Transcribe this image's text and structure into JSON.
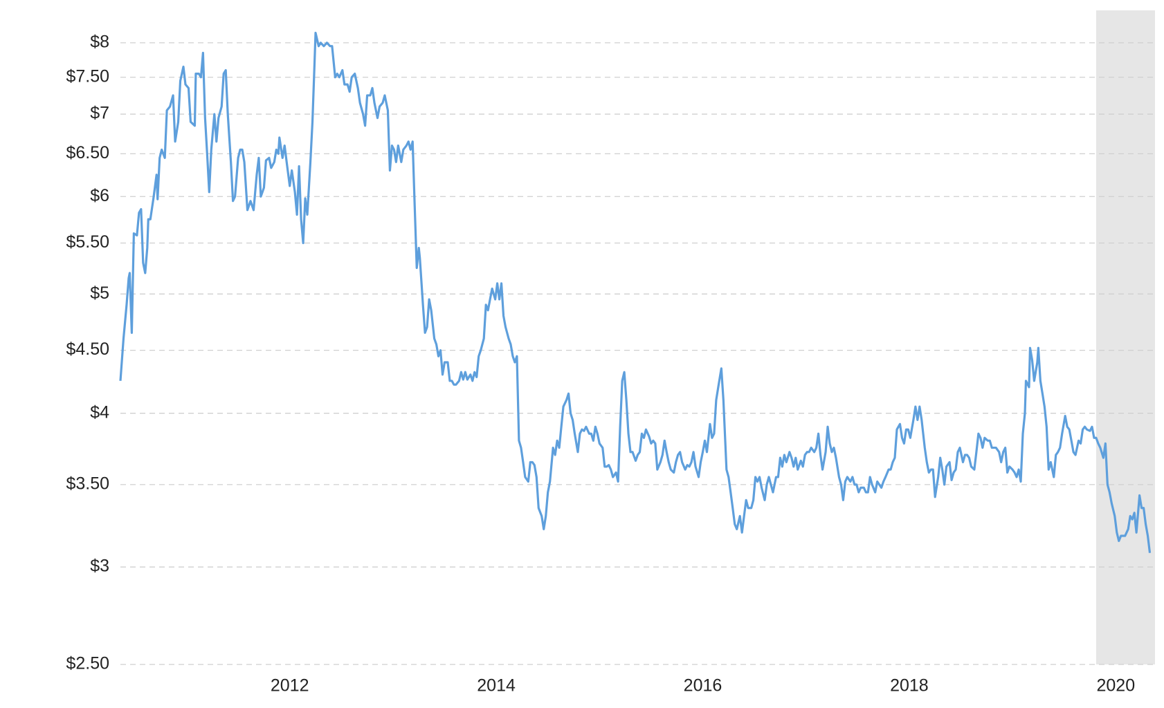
{
  "chart_data": {
    "type": "line",
    "log_y": true,
    "grid": true,
    "highlight_x": [
      2019.81,
      2020.38
    ],
    "highlight_color": "#e6e6e6",
    "xlim": [
      2010.36,
      2020.38
    ],
    "xticks": [
      2012,
      2014,
      2016,
      2018,
      2020
    ],
    "ylim": [
      2.5,
      8.5
    ],
    "yticks": [
      {
        "value": 2.5,
        "label": "$2.50"
      },
      {
        "value": 3,
        "label": "$3"
      },
      {
        "value": 3.5,
        "label": "$3.50"
      },
      {
        "value": 4,
        "label": "$4"
      },
      {
        "value": 4.5,
        "label": "$4.50"
      },
      {
        "value": 5,
        "label": "$5"
      },
      {
        "value": 5.5,
        "label": "$5.50"
      },
      {
        "value": 6,
        "label": "$6"
      },
      {
        "value": 6.5,
        "label": "$6.50"
      },
      {
        "value": 7,
        "label": "$7"
      },
      {
        "value": 7.5,
        "label": "$7.50"
      },
      {
        "value": 8,
        "label": "$8"
      }
    ],
    "x": [
      2010.36,
      2010.39,
      2010.42,
      2010.44,
      2010.45,
      2010.47,
      2010.49,
      2010.52,
      2010.54,
      2010.56,
      2010.58,
      2010.6,
      2010.62,
      2010.63,
      2010.65,
      2010.68,
      2010.71,
      2010.72,
      2010.74,
      2010.76,
      2010.79,
      2010.81,
      2010.84,
      2010.87,
      2010.89,
      2010.92,
      2010.94,
      2010.97,
      2010.99,
      2011.02,
      2011.04,
      2011.08,
      2011.09,
      2011.12,
      2011.14,
      2011.16,
      2011.18,
      2011.2,
      2011.22,
      2011.24,
      2011.27,
      2011.29,
      2011.31,
      2011.34,
      2011.36,
      2011.38,
      2011.4,
      2011.43,
      2011.45,
      2011.47,
      2011.5,
      2011.52,
      2011.54,
      2011.56,
      2011.59,
      2011.62,
      2011.65,
      2011.68,
      2011.7,
      2011.72,
      2011.75,
      2011.77,
      2011.8,
      2011.82,
      2011.85,
      2011.87,
      2011.89,
      2011.9,
      2011.93,
      2011.95,
      2011.97,
      2012.0,
      2012.02,
      2012.05,
      2012.07,
      2012.09,
      2012.11,
      2012.13,
      2012.15,
      2012.17,
      2012.2,
      2012.22,
      2012.24,
      2012.25,
      2012.28,
      2012.3,
      2012.33,
      2012.36,
      2012.39,
      2012.41,
      2012.44,
      2012.46,
      2012.48,
      2012.51,
      2012.53,
      2012.56,
      2012.58,
      2012.6,
      2012.63,
      2012.66,
      2012.68,
      2012.71,
      2012.73,
      2012.75,
      2012.78,
      2012.8,
      2012.82,
      2012.85,
      2012.87,
      2012.9,
      2012.92,
      2012.95,
      2012.97,
      2012.99,
      2013.01,
      2013.03,
      2013.05,
      2013.08,
      2013.1,
      2013.13,
      2013.15,
      2013.17,
      2013.19,
      2013.21,
      2013.23,
      2013.25,
      2013.26,
      2013.29,
      2013.31,
      2013.33,
      2013.35,
      2013.37,
      2013.4,
      2013.42,
      2013.44,
      2013.46,
      2013.48,
      2013.5,
      2013.53,
      2013.55,
      2013.57,
      2013.59,
      2013.61,
      2013.64,
      2013.66,
      2013.68,
      2013.7,
      2013.72,
      2013.75,
      2013.77,
      2013.79,
      2013.81,
      2013.83,
      2013.85,
      2013.88,
      2013.9,
      2013.92,
      2013.94,
      2013.96,
      2013.99,
      2014.01,
      2014.03,
      2014.05,
      2014.07,
      2014.09,
      2014.12,
      2014.14,
      2014.16,
      2014.18,
      2014.2,
      2014.22,
      2014.24,
      2014.26,
      2014.28,
      2014.31,
      2014.33,
      2014.35,
      2014.37,
      2014.39,
      2014.41,
      2014.44,
      2014.46,
      2014.48,
      2014.5,
      2014.52,
      2014.55,
      2014.57,
      2014.59,
      2014.61,
      2014.63,
      2014.65,
      2014.68,
      2014.7,
      2014.72,
      2014.74,
      2014.76,
      2014.79,
      2014.81,
      2014.83,
      2014.85,
      2014.87,
      2014.9,
      2014.92,
      2014.94,
      2014.96,
      2014.98,
      2015.0,
      2015.03,
      2015.05,
      2015.07,
      2015.09,
      2015.11,
      2015.13,
      2015.16,
      2015.18,
      2015.2,
      2015.22,
      2015.24,
      2015.26,
      2015.28,
      2015.3,
      2015.32,
      2015.35,
      2015.37,
      2015.39,
      2015.41,
      2015.43,
      2015.45,
      2015.48,
      2015.5,
      2015.52,
      2015.54,
      2015.56,
      2015.59,
      2015.61,
      2015.63,
      2015.65,
      2015.67,
      2015.69,
      2015.72,
      2015.74,
      2015.76,
      2015.78,
      2015.8,
      2015.83,
      2015.85,
      2015.87,
      2015.89,
      2015.91,
      2015.93,
      2015.96,
      2015.98,
      2016.0,
      2016.02,
      2016.04,
      2016.07,
      2016.09,
      2016.11,
      2016.13,
      2016.15,
      2016.17,
      2016.18,
      2016.2,
      2016.23,
      2016.25,
      2016.27,
      2016.29,
      2016.31,
      2016.33,
      2016.36,
      2016.38,
      2016.4,
      2016.42,
      2016.44,
      2016.47,
      2016.49,
      2016.51,
      2016.53,
      2016.55,
      2016.57,
      2016.6,
      2016.62,
      2016.64,
      2016.66,
      2016.68,
      2016.71,
      2016.73,
      2016.75,
      2016.77,
      2016.79,
      2016.81,
      2016.84,
      2016.86,
      2016.88,
      2016.9,
      2016.92,
      2016.95,
      2016.97,
      2016.99,
      2017.01,
      2017.03,
      2017.05,
      2017.08,
      2017.1,
      2017.12,
      2017.14,
      2017.16,
      2017.19,
      2017.21,
      2017.23,
      2017.25,
      2017.27,
      2017.29,
      2017.32,
      2017.34,
      2017.36,
      2017.38,
      2017.4,
      2017.43,
      2017.45,
      2017.47,
      2017.49,
      2017.51,
      2017.53,
      2017.56,
      2017.58,
      2017.6,
      2017.62,
      2017.64,
      2017.67,
      2017.69,
      2017.71,
      2017.73,
      2017.75,
      2017.77,
      2017.8,
      2017.82,
      2017.84,
      2017.86,
      2017.88,
      2017.91,
      2017.93,
      2017.95,
      2017.97,
      2017.99,
      2018.01,
      2018.04,
      2018.06,
      2018.08,
      2018.1,
      2018.12,
      2018.15,
      2018.17,
      2018.19,
      2018.21,
      2018.23,
      2018.25,
      2018.28,
      2018.3,
      2018.32,
      2018.34,
      2018.36,
      2018.39,
      2018.41,
      2018.43,
      2018.45,
      2018.47,
      2018.49,
      2018.52,
      2018.54,
      2018.56,
      2018.58,
      2018.6,
      2018.63,
      2018.65,
      2018.67,
      2018.69,
      2018.71,
      2018.73,
      2018.76,
      2018.78,
      2018.8,
      2018.82,
      2018.84,
      2018.87,
      2018.89,
      2018.91,
      2018.93,
      2018.95,
      2018.97,
      2019.0,
      2019.02,
      2019.04,
      2019.06,
      2019.08,
      2019.1,
      2019.12,
      2019.13,
      2019.16,
      2019.17,
      2019.19,
      2019.21,
      2019.24,
      2019.25,
      2019.27,
      2019.29,
      2019.31,
      2019.33,
      2019.35,
      2019.37,
      2019.4,
      2019.42,
      2019.44,
      2019.46,
      2019.48,
      2019.51,
      2019.53,
      2019.55,
      2019.57,
      2019.59,
      2019.61,
      2019.64,
      2019.66,
      2019.68,
      2019.7,
      2019.72,
      2019.75,
      2019.77,
      2019.79,
      2019.81,
      2019.83,
      2019.85,
      2019.88,
      2019.9,
      2019.92,
      2019.94,
      2019.96,
      2019.99,
      2020.01,
      2020.03,
      2020.05,
      2020.07,
      2020.09,
      2020.12,
      2020.14,
      2020.16,
      2020.18,
      2020.2,
      2020.23,
      2020.25,
      2020.27,
      2020.29,
      2020.31,
      2020.33
    ],
    "series": [
      {
        "color": "#5e9fdc",
        "values": [
          4.25,
          4.6,
          4.9,
          5.15,
          5.2,
          4.65,
          5.6,
          5.58,
          5.82,
          5.86,
          5.3,
          5.2,
          5.45,
          5.75,
          5.75,
          5.98,
          6.25,
          5.97,
          6.45,
          6.55,
          6.45,
          7.05,
          7.1,
          7.25,
          6.65,
          6.9,
          7.45,
          7.65,
          7.4,
          7.35,
          6.9,
          6.85,
          7.55,
          7.55,
          7.5,
          7.85,
          6.95,
          6.5,
          6.05,
          6.55,
          7.0,
          6.65,
          6.95,
          7.1,
          7.55,
          7.6,
          7.0,
          6.4,
          5.95,
          6.0,
          6.45,
          6.55,
          6.55,
          6.4,
          5.85,
          5.95,
          5.85,
          6.25,
          6.45,
          6.0,
          6.1,
          6.42,
          6.45,
          6.33,
          6.4,
          6.55,
          6.5,
          6.7,
          6.45,
          6.6,
          6.4,
          6.12,
          6.3,
          6.05,
          5.8,
          6.35,
          5.75,
          5.5,
          5.98,
          5.8,
          6.4,
          6.9,
          7.7,
          8.15,
          7.95,
          8.0,
          7.95,
          8.0,
          7.95,
          7.95,
          7.5,
          7.55,
          7.5,
          7.6,
          7.4,
          7.4,
          7.3,
          7.5,
          7.55,
          7.35,
          7.15,
          7.0,
          6.85,
          7.25,
          7.25,
          7.35,
          7.15,
          6.95,
          7.1,
          7.15,
          7.25,
          7.05,
          6.3,
          6.6,
          6.55,
          6.4,
          6.6,
          6.4,
          6.55,
          6.6,
          6.65,
          6.55,
          6.65,
          5.9,
          5.25,
          5.45,
          5.35,
          4.9,
          4.65,
          4.7,
          4.95,
          4.85,
          4.6,
          4.55,
          4.45,
          4.5,
          4.3,
          4.4,
          4.4,
          4.25,
          4.25,
          4.22,
          4.22,
          4.25,
          4.32,
          4.26,
          4.32,
          4.26,
          4.3,
          4.25,
          4.32,
          4.28,
          4.45,
          4.5,
          4.6,
          4.9,
          4.85,
          4.95,
          5.05,
          4.95,
          5.1,
          4.95,
          5.1,
          4.8,
          4.7,
          4.6,
          4.55,
          4.45,
          4.4,
          4.45,
          3.8,
          3.75,
          3.65,
          3.55,
          3.52,
          3.65,
          3.65,
          3.63,
          3.55,
          3.35,
          3.3,
          3.22,
          3.3,
          3.45,
          3.52,
          3.75,
          3.7,
          3.8,
          3.75,
          3.9,
          4.05,
          4.1,
          4.15,
          4.0,
          3.95,
          3.85,
          3.72,
          3.85,
          3.88,
          3.87,
          3.9,
          3.85,
          3.85,
          3.8,
          3.9,
          3.85,
          3.78,
          3.75,
          3.62,
          3.62,
          3.63,
          3.6,
          3.55,
          3.58,
          3.52,
          3.9,
          4.25,
          4.32,
          4.1,
          3.85,
          3.72,
          3.72,
          3.66,
          3.7,
          3.72,
          3.85,
          3.82,
          3.88,
          3.83,
          3.78,
          3.8,
          3.78,
          3.6,
          3.65,
          3.7,
          3.8,
          3.72,
          3.65,
          3.6,
          3.58,
          3.65,
          3.7,
          3.72,
          3.65,
          3.6,
          3.63,
          3.62,
          3.65,
          3.72,
          3.62,
          3.55,
          3.65,
          3.72,
          3.8,
          3.72,
          3.92,
          3.82,
          3.85,
          4.1,
          4.2,
          4.3,
          4.35,
          4.1,
          3.6,
          3.55,
          3.45,
          3.35,
          3.25,
          3.22,
          3.3,
          3.2,
          3.3,
          3.4,
          3.35,
          3.35,
          3.4,
          3.55,
          3.52,
          3.55,
          3.48,
          3.4,
          3.5,
          3.55,
          3.5,
          3.45,
          3.55,
          3.55,
          3.68,
          3.62,
          3.7,
          3.65,
          3.72,
          3.68,
          3.62,
          3.68,
          3.6,
          3.66,
          3.62,
          3.7,
          3.72,
          3.72,
          3.75,
          3.72,
          3.75,
          3.85,
          3.7,
          3.6,
          3.72,
          3.9,
          3.78,
          3.72,
          3.75,
          3.68,
          3.55,
          3.5,
          3.4,
          3.52,
          3.55,
          3.52,
          3.55,
          3.5,
          3.5,
          3.45,
          3.48,
          3.48,
          3.45,
          3.45,
          3.55,
          3.5,
          3.45,
          3.52,
          3.5,
          3.48,
          3.52,
          3.55,
          3.6,
          3.6,
          3.65,
          3.68,
          3.88,
          3.92,
          3.82,
          3.78,
          3.88,
          3.88,
          3.82,
          3.95,
          4.05,
          3.95,
          4.05,
          3.95,
          3.75,
          3.65,
          3.58,
          3.6,
          3.6,
          3.42,
          3.55,
          3.68,
          3.6,
          3.5,
          3.62,
          3.65,
          3.53,
          3.58,
          3.6,
          3.72,
          3.75,
          3.65,
          3.7,
          3.7,
          3.68,
          3.62,
          3.6,
          3.72,
          3.85,
          3.82,
          3.75,
          3.82,
          3.8,
          3.8,
          3.75,
          3.75,
          3.75,
          3.72,
          3.65,
          3.72,
          3.75,
          3.58,
          3.62,
          3.6,
          3.58,
          3.55,
          3.6,
          3.52,
          3.85,
          4.0,
          4.25,
          4.2,
          4.52,
          4.42,
          4.25,
          4.4,
          4.52,
          4.25,
          4.15,
          4.05,
          3.9,
          3.6,
          3.65,
          3.55,
          3.7,
          3.72,
          3.75,
          3.85,
          3.98,
          3.9,
          3.88,
          3.8,
          3.72,
          3.7,
          3.8,
          3.78,
          3.88,
          3.9,
          3.88,
          3.87,
          3.9,
          3.82,
          3.82,
          3.78,
          3.75,
          3.68,
          3.78,
          3.5,
          3.45,
          3.38,
          3.3,
          3.2,
          3.15,
          3.18,
          3.18,
          3.18,
          3.22,
          3.3,
          3.28,
          3.32,
          3.2,
          3.43,
          3.35,
          3.35,
          3.25,
          3.18,
          3.08
        ]
      }
    ]
  }
}
